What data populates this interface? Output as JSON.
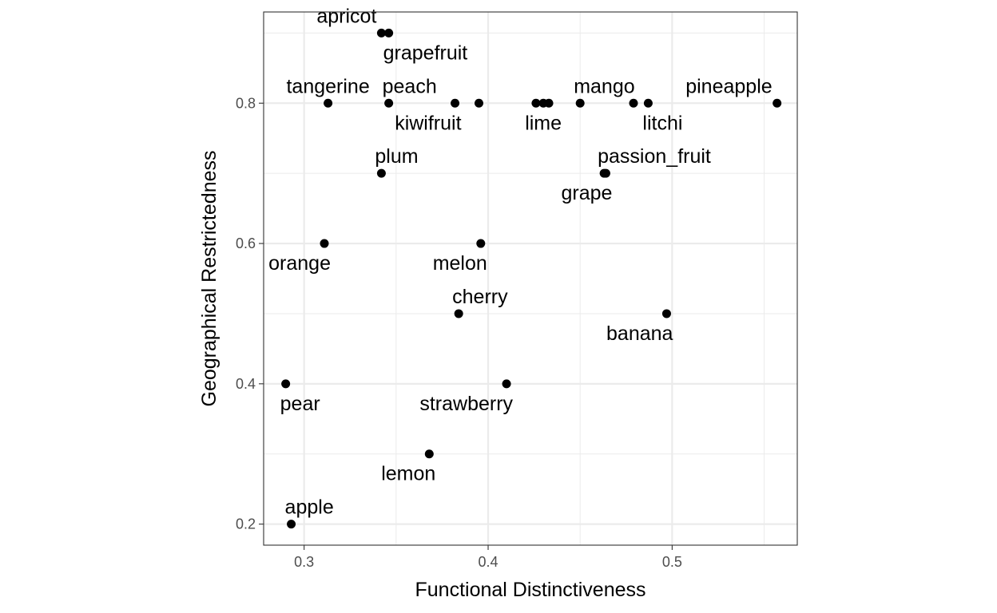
{
  "chart_data": {
    "type": "scatter",
    "title": "",
    "xlabel": "Functional Distinctiveness",
    "ylabel": "Geographical Restrictedness",
    "xlim": [
      0.278,
      0.568
    ],
    "ylim": [
      0.17,
      0.93
    ],
    "x_ticks": [
      0.3,
      0.4,
      0.5
    ],
    "x_tick_labels": [
      "0.3",
      "0.4",
      "0.5"
    ],
    "y_ticks": [
      0.2,
      0.4,
      0.6,
      0.8
    ],
    "y_tick_labels": [
      "0.2",
      "0.4",
      "0.6",
      "0.8"
    ],
    "x_minor_ticks": [
      0.35,
      0.45,
      0.55
    ],
    "y_minor_ticks": [
      0.3,
      0.5,
      0.7,
      0.9
    ],
    "grid": true,
    "legend": "none",
    "colors": {
      "point": "#000000",
      "grid": "#ebebeb",
      "panel_border": "#333333",
      "background": "#ffffff"
    },
    "points": [
      {
        "x": 0.342,
        "y": 0.9,
        "label": "apricot",
        "label_pos": "above-left"
      },
      {
        "x": 0.346,
        "y": 0.9,
        "label": "grapefruit",
        "label_pos": "below-right"
      },
      {
        "x": 0.313,
        "y": 0.8,
        "label": "tangerine",
        "label_pos": "above"
      },
      {
        "x": 0.346,
        "y": 0.8,
        "label": "peach",
        "label_pos": "above-right"
      },
      {
        "x": 0.382,
        "y": 0.8,
        "label": "kiwifruit",
        "label_pos": "below-left"
      },
      {
        "x": 0.395,
        "y": 0.8,
        "label": "",
        "label_pos": "none"
      },
      {
        "x": 0.426,
        "y": 0.8,
        "label": "",
        "label_pos": "none"
      },
      {
        "x": 0.43,
        "y": 0.8,
        "label": "lime",
        "label_pos": "below"
      },
      {
        "x": 0.433,
        "y": 0.8,
        "label": "",
        "label_pos": "none"
      },
      {
        "x": 0.45,
        "y": 0.8,
        "label": "mango",
        "label_pos": "above-right"
      },
      {
        "x": 0.479,
        "y": 0.8,
        "label": "",
        "label_pos": "none"
      },
      {
        "x": 0.487,
        "y": 0.8,
        "label": "litchi",
        "label_pos": "below-right"
      },
      {
        "x": 0.557,
        "y": 0.8,
        "label": "pineapple",
        "label_pos": "above-left"
      },
      {
        "x": 0.342,
        "y": 0.7,
        "label": "plum",
        "label_pos": "above-right"
      },
      {
        "x": 0.463,
        "y": 0.7,
        "label": "passion_fruit",
        "label_pos": "above-right"
      },
      {
        "x": 0.464,
        "y": 0.7,
        "label": "grape",
        "label_pos": "below-left"
      },
      {
        "x": 0.311,
        "y": 0.6,
        "label": "orange",
        "label_pos": "below-left"
      },
      {
        "x": 0.396,
        "y": 0.6,
        "label": "melon",
        "label_pos": "below-left"
      },
      {
        "x": 0.384,
        "y": 0.5,
        "label": "cherry",
        "label_pos": "above-right"
      },
      {
        "x": 0.497,
        "y": 0.5,
        "label": "banana",
        "label_pos": "below-left"
      },
      {
        "x": 0.29,
        "y": 0.4,
        "label": "pear",
        "label_pos": "below-right"
      },
      {
        "x": 0.41,
        "y": 0.4,
        "label": "strawberry",
        "label_pos": "below-left"
      },
      {
        "x": 0.368,
        "y": 0.3,
        "label": "lemon",
        "label_pos": "below-left"
      },
      {
        "x": 0.293,
        "y": 0.2,
        "label": "apple",
        "label_pos": "above-right"
      }
    ]
  }
}
